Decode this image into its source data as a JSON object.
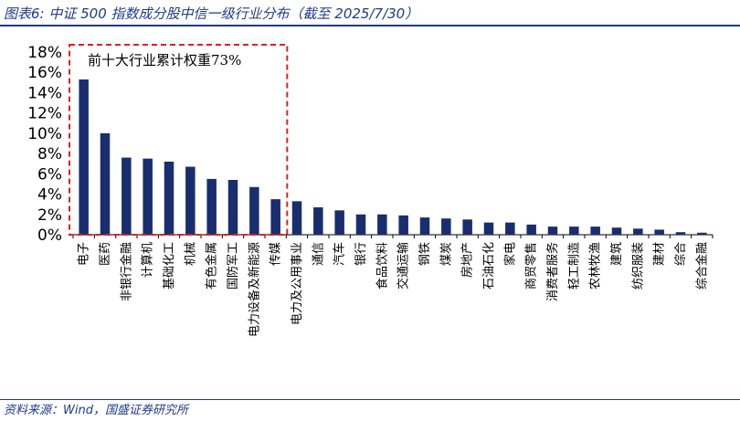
{
  "figure": {
    "title": "图表6:  中证 500 指数成分股中信一级行业分布（截至 2025/7/30）",
    "source": "资料来源：Wind，国盛证券研究所"
  },
  "colors": {
    "bar": "#1a2e6e",
    "annotation_box": "#e02020",
    "title_text": "#1f3a8a",
    "axis": "#000000"
  },
  "chart_data": {
    "type": "bar",
    "title": "",
    "xlabel": "",
    "ylabel": "",
    "ylim": [
      0,
      18
    ],
    "y_ticks": [
      "0%",
      "2%",
      "4%",
      "6%",
      "8%",
      "10%",
      "12%",
      "14%",
      "16%",
      "18%"
    ],
    "grid": false,
    "legend": "none",
    "categories": [
      "电子",
      "医药",
      "非银行金融",
      "计算机",
      "基础化工",
      "机械",
      "有色金属",
      "国防军工",
      "电力设备及新能源",
      "传媒",
      "电力及公用事业",
      "通信",
      "汽车",
      "银行",
      "食品饮料",
      "交通运输",
      "钢铁",
      "煤炭",
      "房地产",
      "石油石化",
      "家电",
      "商贸零售",
      "消费者服务",
      "轻工制造",
      "农林牧渔",
      "建筑",
      "纺织服装",
      "建材",
      "综合",
      "综合金融"
    ],
    "values": [
      15.3,
      10.0,
      7.6,
      7.5,
      7.2,
      6.7,
      5.5,
      5.4,
      4.7,
      3.5,
      3.3,
      2.7,
      2.4,
      2.0,
      2.0,
      1.9,
      1.7,
      1.6,
      1.5,
      1.2,
      1.2,
      1.0,
      0.8,
      0.8,
      0.8,
      0.7,
      0.6,
      0.5,
      0.25,
      0.2
    ],
    "annotation": "前十大行业累计权重73%"
  }
}
